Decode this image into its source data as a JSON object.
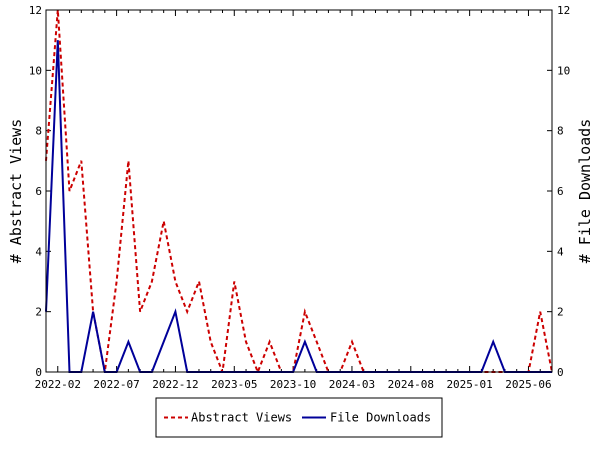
{
  "chart_data": {
    "type": "line",
    "x_dates": [
      "2022-01",
      "2022-02",
      "2022-03",
      "2022-04",
      "2022-05",
      "2022-06",
      "2022-07",
      "2022-08",
      "2022-09",
      "2022-10",
      "2022-11",
      "2022-12",
      "2023-01",
      "2023-02",
      "2023-03",
      "2023-04",
      "2023-05",
      "2023-06",
      "2023-07",
      "2023-08",
      "2023-09",
      "2023-10",
      "2023-11",
      "2023-12",
      "2024-01",
      "2024-02",
      "2024-03",
      "2024-04",
      "2024-05",
      "2024-06",
      "2024-07",
      "2024-08",
      "2024-09",
      "2024-10",
      "2024-11",
      "2024-12",
      "2025-01",
      "2025-02",
      "2025-03",
      "2025-04",
      "2025-05",
      "2025-06",
      "2025-07",
      "2025-08"
    ],
    "x_ticks": [
      "2022-02",
      "2022-07",
      "2022-12",
      "2023-05",
      "2023-10",
      "2024-03",
      "2024-08",
      "2025-01",
      "2025-06"
    ],
    "y_ticks": [
      0,
      2,
      4,
      6,
      8,
      10,
      12
    ],
    "ylim": [
      0,
      12
    ],
    "ylabel_left": "# Abstract Views",
    "ylabel_right": "# File Downloads",
    "series": [
      {
        "name": "Abstract Views",
        "color": "#cc0000",
        "style": "dashed",
        "values": [
          7,
          12,
          6,
          7,
          2,
          0,
          3,
          7,
          2,
          3,
          5,
          3,
          2,
          3,
          1,
          0,
          3,
          1,
          0,
          1,
          0,
          0,
          2,
          1,
          0,
          0,
          1,
          0,
          0,
          0,
          0,
          0,
          0,
          0,
          0,
          0,
          0,
          0,
          0,
          0,
          0,
          0,
          2,
          0
        ]
      },
      {
        "name": "File Downloads",
        "color": "#000099",
        "style": "solid",
        "values": [
          2,
          11,
          0,
          0,
          2,
          0,
          0,
          1,
          0,
          0,
          1,
          2,
          0,
          0,
          0,
          0,
          0,
          0,
          0,
          0,
          0,
          0,
          1,
          0,
          0,
          0,
          0,
          0,
          0,
          0,
          0,
          0,
          0,
          0,
          0,
          0,
          0,
          0,
          1,
          0,
          0,
          0,
          0,
          0
        ]
      }
    ],
    "legend_position": "bottom-center"
  }
}
